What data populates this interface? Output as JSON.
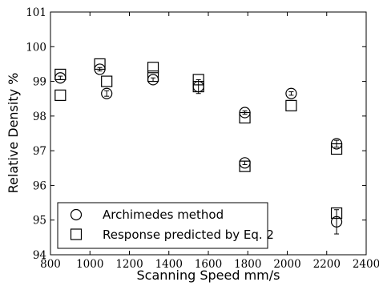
{
  "chart_data": {
    "type": "scatter",
    "xlabel": "Scanning Speed mm/s",
    "ylabel": "Relative Density %",
    "xlim": [
      800,
      2400
    ],
    "ylim": [
      94,
      101
    ],
    "xticks": [
      800,
      1000,
      1200,
      1400,
      1600,
      1800,
      2000,
      2200,
      2400
    ],
    "yticks": [
      94,
      95,
      96,
      97,
      98,
      99,
      100,
      101
    ],
    "grid": false,
    "legend_position": "bottom-left",
    "series": [
      {
        "name": "Archimedes method",
        "marker": "circle",
        "points": [
          {
            "x": 850,
            "y": 99.1,
            "err": 0.05
          },
          {
            "x": 1050,
            "y": 99.35,
            "err": 0.05
          },
          {
            "x": 1085,
            "y": 98.65,
            "err": 0.08
          },
          {
            "x": 1320,
            "y": 99.05,
            "err": 0.05
          },
          {
            "x": 1550,
            "y": 98.85,
            "err": 0.2
          },
          {
            "x": 1785,
            "y": 98.1,
            "err": 0.05
          },
          {
            "x": 1785,
            "y": 96.65,
            "err": 0.05
          },
          {
            "x": 2020,
            "y": 98.65,
            "err": 0.05
          },
          {
            "x": 2250,
            "y": 97.2,
            "err": 0.1
          },
          {
            "x": 2250,
            "y": 94.95,
            "err": 0.35
          }
        ]
      },
      {
        "name": "Response predicted by Eq. 2",
        "marker": "square",
        "points": [
          {
            "x": 850,
            "y": 99.2
          },
          {
            "x": 850,
            "y": 98.6
          },
          {
            "x": 1050,
            "y": 99.5
          },
          {
            "x": 1085,
            "y": 99.0
          },
          {
            "x": 1320,
            "y": 99.4
          },
          {
            "x": 1320,
            "y": 99.15
          },
          {
            "x": 1550,
            "y": 99.05
          },
          {
            "x": 1550,
            "y": 98.85
          },
          {
            "x": 1785,
            "y": 97.95
          },
          {
            "x": 1785,
            "y": 96.55
          },
          {
            "x": 2020,
            "y": 98.3
          },
          {
            "x": 2250,
            "y": 97.05
          },
          {
            "x": 2250,
            "y": 95.2
          }
        ]
      }
    ]
  }
}
